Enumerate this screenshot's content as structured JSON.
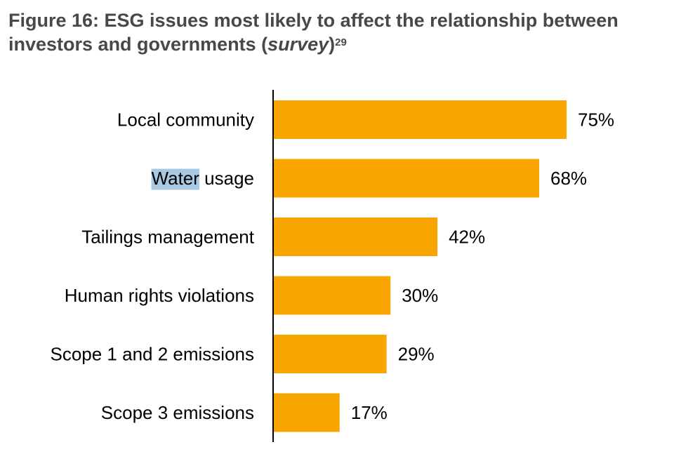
{
  "chart_data": {
    "type": "bar",
    "orientation": "horizontal",
    "title": "Figure 16: ESG issues most likely to affect the relationship between investors and governments (",
    "title_italic": "survey",
    "title_close": ")",
    "title_footnote": "29",
    "categories": [
      "Local community",
      "Water usage",
      "Tailings management",
      "Human rights violations",
      "Scope 1 and 2 emissions",
      "Scope 3 emissions"
    ],
    "values": [
      75,
      68,
      42,
      30,
      29,
      17
    ],
    "value_labels": [
      "75%",
      "68%",
      "42%",
      "30%",
      "29%",
      "17%"
    ],
    "xlabel": "",
    "ylabel": "",
    "xlim": [
      0,
      100
    ],
    "grid": false,
    "legend": "none",
    "bar_color": "#F9A500",
    "selected_text": {
      "category_index": 1,
      "text": "Water"
    }
  }
}
